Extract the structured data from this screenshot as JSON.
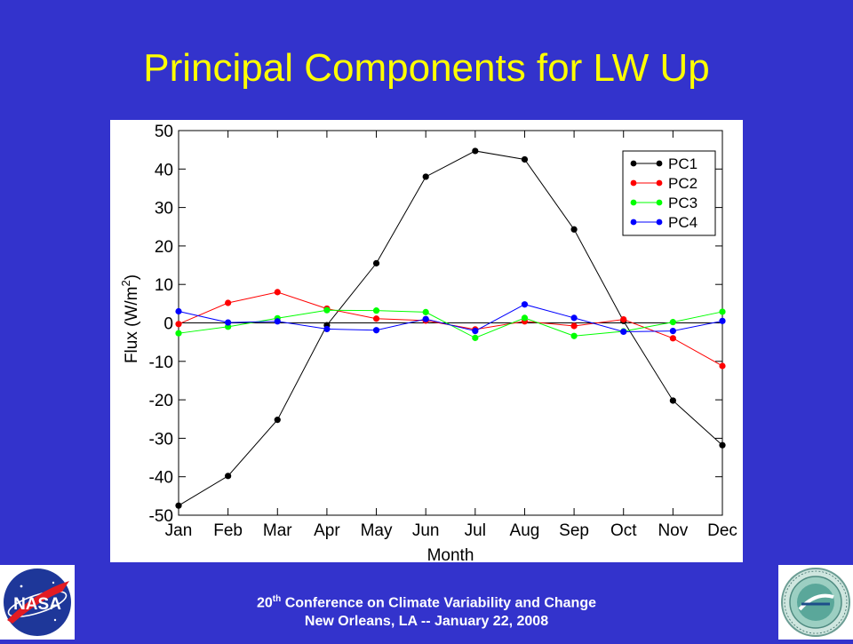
{
  "slide": {
    "title": "Principal Components for LW Up",
    "footer_line1_ordinal": "20",
    "footer_line1_suffix": "th",
    "footer_line1_rest": " Conference on Climate Variability and Change",
    "footer_line2": "New Orleans, LA -- January 22, 2008",
    "left_logo": "NASA",
    "right_logo_icon": "lsaf-climate-monitoring-seal"
  },
  "chart_data": {
    "type": "line",
    "title": "",
    "xlabel": "Month",
    "ylabel": "Flux (W/m²)",
    "categories": [
      "Jan",
      "Feb",
      "Mar",
      "Apr",
      "May",
      "Jun",
      "Jul",
      "Aug",
      "Sep",
      "Oct",
      "Nov",
      "Dec"
    ],
    "ylim": [
      -50,
      50
    ],
    "yticks": [
      50,
      40,
      30,
      20,
      10,
      0,
      -10,
      -20,
      -30,
      -40,
      -50
    ],
    "zero_line": true,
    "grid": false,
    "legend_position": "top-right",
    "series": [
      {
        "name": "PC1",
        "color": "#000000",
        "values": [
          -47.5,
          -39.8,
          -25.2,
          -0.6,
          15.5,
          38.0,
          44.7,
          42.5,
          24.3,
          0.5,
          -20.2,
          -31.8
        ]
      },
      {
        "name": "PC2",
        "color": "#ff0000",
        "values": [
          -0.3,
          5.2,
          8.0,
          3.7,
          1.1,
          0.6,
          -1.7,
          0.4,
          -0.8,
          0.9,
          -4.0,
          -11.2
        ]
      },
      {
        "name": "PC3",
        "color": "#00ff00",
        "values": [
          -2.7,
          -1.0,
          1.2,
          3.3,
          3.2,
          2.8,
          -3.9,
          1.3,
          -3.4,
          -2.2,
          0.2,
          2.9
        ]
      },
      {
        "name": "PC4",
        "color": "#0000ff",
        "values": [
          3.0,
          0.1,
          0.4,
          -1.6,
          -1.9,
          1.0,
          -2.1,
          4.8,
          1.3,
          -2.3,
          -2.1,
          0.5
        ]
      }
    ]
  }
}
